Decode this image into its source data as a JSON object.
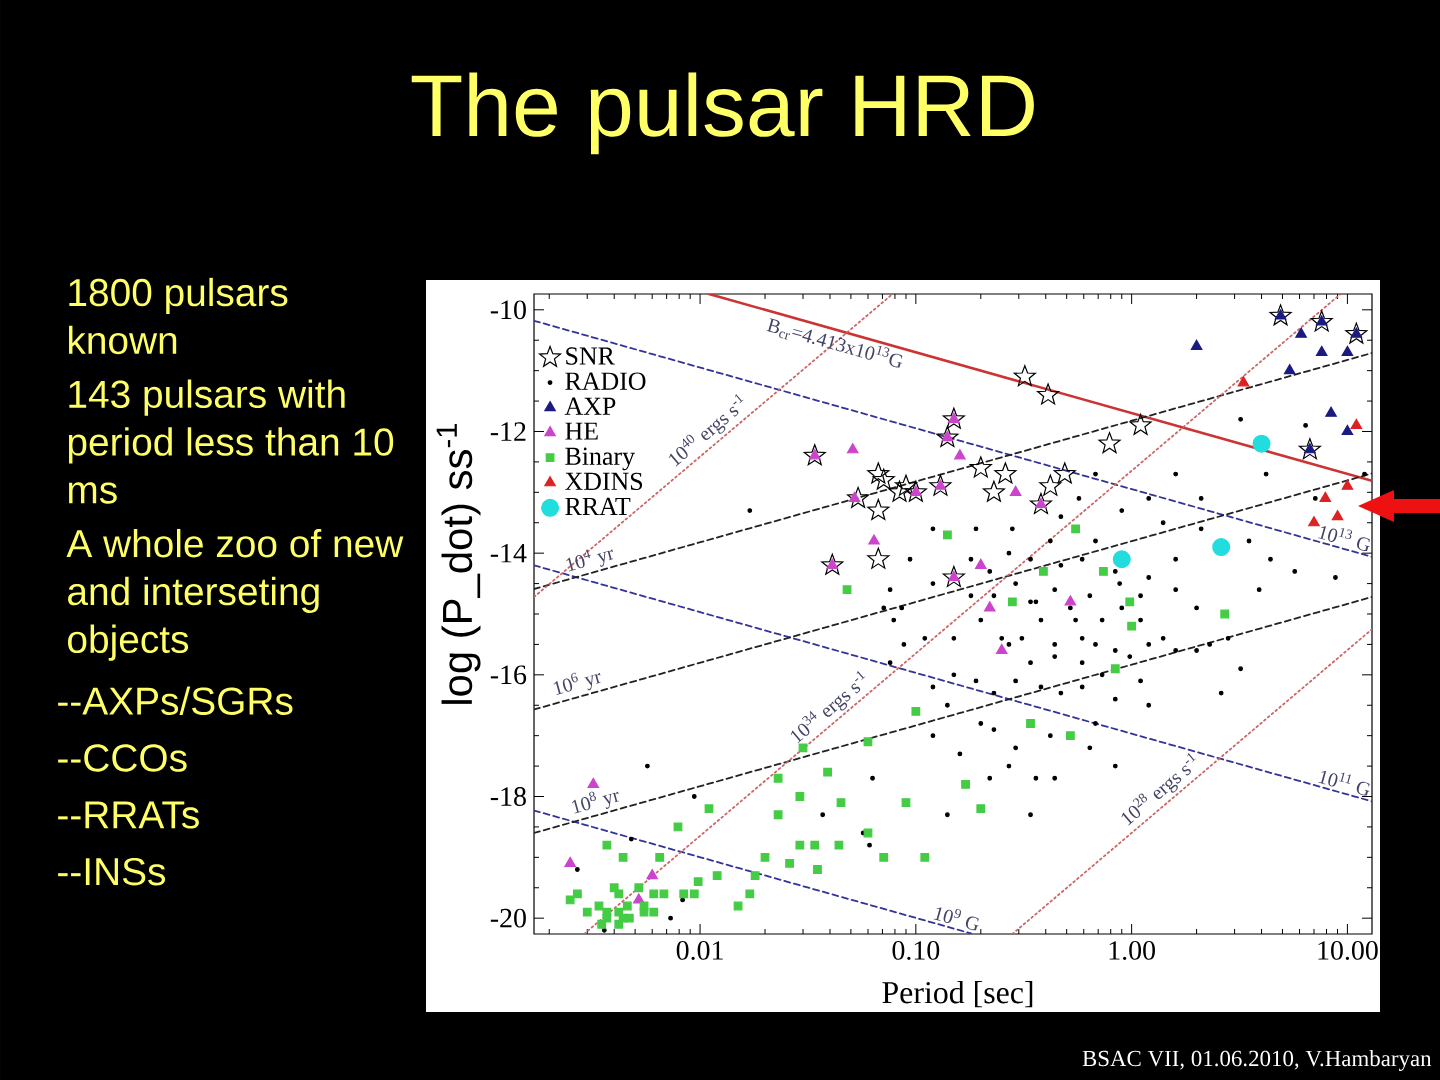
{
  "chart_data": {
    "type": "scatter",
    "title": "The pulsar HRD",
    "xlabel": "Period [sec]",
    "ylabel": "log (P_dot) ss$^{-1}$",
    "log": "x",
    "xlim": [
      0.0017,
      13
    ],
    "ylim": [
      -20.26,
      -9.74
    ],
    "xticks": [
      {
        "value": 0.01,
        "label": "0.01"
      },
      {
        "value": 0.1,
        "label": "0.10"
      },
      {
        "value": 1,
        "label": "1.00"
      },
      {
        "value": 10,
        "label": "10.00"
      }
    ],
    "yticks": [
      -20,
      -18,
      -16,
      -14,
      -12,
      -10
    ],
    "legend": "top left",
    "series": [
      {
        "name": "SNR",
        "color": "#000000",
        "marker": "star",
        "x": [
          0.034,
          0.067,
          0.071,
          0.084,
          0.054,
          0.067,
          0.041,
          0.067,
          4.9,
          7.6,
          11,
          0.32,
          0.41,
          1.1,
          0.15,
          0.14,
          0.79,
          6.7,
          0.09,
          0.1,
          0.13,
          0.2,
          0.26,
          0.23,
          0.49,
          0.42,
          0.38,
          0.15
        ],
        "values": [
          -12.4,
          -12.7,
          -12.8,
          -13.0,
          -13.1,
          -13.3,
          -14.2,
          -14.1,
          -10.1,
          -10.2,
          -10.4,
          -11.1,
          -11.4,
          -11.9,
          -11.8,
          -12.1,
          -12.2,
          -12.3,
          -12.9,
          -13.0,
          -12.9,
          -12.6,
          -12.7,
          -13.0,
          -12.7,
          -12.9,
          -13.2,
          -14.4
        ]
      },
      {
        "name": "RADIO",
        "color": "#000000",
        "marker": "circle",
        "x": [
          3.2,
          6.4,
          4.2,
          12,
          7.1,
          1.6,
          2.1,
          1.2,
          0.68,
          0.57,
          0.9,
          0.47,
          1.4,
          2.1,
          3.5,
          4.4,
          5.7,
          8.8,
          1.6,
          1.2,
          1.6,
          2.0,
          0.68,
          0.84,
          0.59,
          0.42,
          0.34,
          0.27,
          0.22,
          0.29,
          0.44,
          0.64,
          0.9,
          1.1,
          0.55,
          0.38,
          0.31,
          0.44,
          0.68,
          0.84,
          0.18,
          0.12,
          0.094,
          0.086,
          0.2,
          0.15,
          1.4,
          2.0,
          2.8,
          3.9,
          0.19,
          0.28,
          0.12,
          0.27,
          0.34,
          0.44,
          0.59,
          0.73,
          0.98,
          1.2,
          1.6,
          2.3,
          3.2,
          2.6,
          1.2,
          1.1,
          0.84,
          0.59,
          0.47,
          0.38,
          0.29,
          0.23,
          0.19,
          0.15,
          0.12,
          0.14,
          0.23,
          0.29,
          0.42,
          0.64,
          0.84,
          0.44,
          0.36,
          0.27,
          0.22,
          0.14,
          0.34,
          0.2,
          0.68,
          0.16,
          0.12,
          0.017,
          0.0057,
          0.0094,
          0.0048,
          0.0083,
          0.037,
          0.057,
          0.061,
          0.063,
          0.0027,
          0.0073,
          0.0036,
          0.071,
          0.076,
          0.079,
          0.088,
          0.076,
          0.23,
          0.36,
          0.52,
          0.73,
          0.47,
          0.88,
          0.25,
          0.34,
          0.59,
          1.1,
          0.18,
          0.11
        ],
        "values": [
          -11.8,
          -11.9,
          -12.7,
          -12.7,
          -13.1,
          -12.7,
          -13.1,
          -13.1,
          -12.7,
          -13.1,
          -13.3,
          -13.4,
          -13.5,
          -13.6,
          -13.8,
          -14.1,
          -14.3,
          -14.4,
          -14.1,
          -14.4,
          -14.6,
          -14.9,
          -13.8,
          -14.3,
          -14.1,
          -13.8,
          -14.1,
          -14.0,
          -14.3,
          -14.5,
          -14.6,
          -14.7,
          -14.9,
          -15.1,
          -15.1,
          -15.1,
          -15.4,
          -15.5,
          -15.5,
          -15.6,
          -14.7,
          -14.5,
          -14.1,
          -14.9,
          -15.1,
          -15.4,
          -15.4,
          -15.6,
          -15.4,
          -14.6,
          -13.6,
          -13.6,
          -13.6,
          -15.5,
          -15.8,
          -15.7,
          -15.8,
          -16.0,
          -15.7,
          -15.5,
          -15.6,
          -15.5,
          -15.9,
          -16.3,
          -16.5,
          -16.1,
          -16.4,
          -16.2,
          -16.3,
          -16.2,
          -16.1,
          -16.3,
          -16.1,
          -16.0,
          -16.2,
          -16.5,
          -16.9,
          -17.2,
          -17.0,
          -17.2,
          -17.5,
          -17.7,
          -17.7,
          -17.5,
          -17.7,
          -18.3,
          -18.3,
          -16.8,
          -16.8,
          -17.3,
          -17.0,
          -13.3,
          -17.5,
          -18.0,
          -18.7,
          -19.7,
          -18.3,
          -18.6,
          -18.8,
          -17.7,
          -19.2,
          -20.0,
          -20.2,
          -14.9,
          -14.6,
          -15.1,
          -15.5,
          -15.8,
          -14.7,
          -14.8,
          -14.9,
          -15.1,
          -14.2,
          -14.5,
          -15.4,
          -14.8,
          -15.4,
          -14.7,
          -14.1,
          -15.4
        ]
      },
      {
        "name": "AXP",
        "color": "#1a1a80",
        "marker": "triangle",
        "x": [
          2.0,
          6.1,
          7.6,
          10,
          5.4,
          8.4,
          10,
          6.7,
          7.6,
          4.9,
          11
        ],
        "values": [
          -10.6,
          -10.4,
          -10.7,
          -10.7,
          -11.0,
          -11.7,
          -12.0,
          -12.3,
          -10.2,
          -10.1,
          -10.4
        ]
      },
      {
        "name": "HE",
        "color": "#cc44cc",
        "marker": "triangle",
        "x": [
          0.034,
          0.051,
          0.052,
          0.064,
          0.15,
          0.14,
          0.16,
          0.1,
          0.13,
          0.29,
          0.38,
          0.15,
          0.2,
          0.22,
          0.25,
          0.52,
          0.0032,
          0.0025,
          0.006,
          0.0052,
          0.041
        ],
        "values": [
          -12.4,
          -12.3,
          -13.1,
          -13.8,
          -11.8,
          -12.1,
          -12.4,
          -13.0,
          -12.9,
          -13.0,
          -13.2,
          -14.4,
          -14.2,
          -14.9,
          -15.6,
          -14.8,
          -17.8,
          -19.1,
          -19.3,
          -19.7,
          -14.2
        ]
      },
      {
        "name": "Binary",
        "color": "#44cc44",
        "marker": "square",
        "x": [
          0.048,
          0.14,
          0.55,
          0.39,
          0.28,
          0.98,
          1.0,
          0.74,
          2.7,
          0.84,
          0.1,
          0.34,
          0.52,
          0.17,
          0.2,
          0.09,
          0.11,
          0.03,
          0.06,
          0.023,
          0.029,
          0.039,
          0.045,
          0.011,
          0.0079,
          0.023,
          0.0037,
          0.0044,
          0.0065,
          0.02,
          0.026,
          0.029,
          0.034,
          0.035,
          0.044,
          0.06,
          0.071,
          0.018,
          0.017,
          0.015,
          0.0098,
          0.012,
          0.0094,
          0.0084,
          0.0068,
          0.0061,
          0.0055,
          0.0055,
          0.0046,
          0.0042,
          0.0042,
          0.0037,
          0.0037,
          0.003,
          0.0035,
          0.0042,
          0.0044,
          0.0047,
          0.004,
          0.0027,
          0.0025,
          0.0034,
          0.0052,
          0.0061
        ],
        "values": [
          -14.6,
          -13.7,
          -13.6,
          -14.3,
          -14.8,
          -14.8,
          -15.2,
          -14.3,
          -15.0,
          -15.9,
          -16.6,
          -16.8,
          -17.0,
          -17.8,
          -18.2,
          -18.1,
          -19.0,
          -17.2,
          -17.1,
          -17.7,
          -18.0,
          -17.6,
          -18.1,
          -18.2,
          -18.5,
          -18.3,
          -18.8,
          -19.0,
          -19.0,
          -19.0,
          -19.1,
          -18.8,
          -18.8,
          -19.2,
          -18.8,
          -18.6,
          -19.0,
          -19.3,
          -19.6,
          -19.8,
          -19.4,
          -19.3,
          -19.6,
          -19.6,
          -19.6,
          -19.6,
          -19.9,
          -19.8,
          -19.8,
          -19.9,
          -19.6,
          -19.9,
          -20.0,
          -19.9,
          -20.1,
          -20.1,
          -20.0,
          -20.0,
          -19.5,
          -19.6,
          -19.7,
          -19.8,
          -19.5,
          -19.9
        ]
      },
      {
        "name": "XDINS",
        "color": "#dd2222",
        "marker": "triangle",
        "x": [
          10,
          7.9,
          9.0,
          7.0,
          3.3,
          11
        ],
        "values": [
          -12.9,
          -13.1,
          -13.4,
          -13.5,
          -11.2,
          -11.9
        ]
      },
      {
        "name": "RRAT",
        "color": "#22dddd",
        "marker": "circle",
        "x": [
          4.0,
          0.9,
          2.6
        ],
        "values": [
          -12.2,
          -14.1,
          -13.9
        ]
      },
      {
        "type": "line",
        "color": "#cc3333",
        "line_style": "solid",
        "x": [
          0.011,
          13
        ],
        "values": [
          -9.74,
          -12.81
        ]
      },
      {
        "type": "line",
        "color": "#333399",
        "line_style": "dashed",
        "x": [
          0.0017,
          13
        ],
        "values": [
          -10.18,
          -14.06
        ]
      },
      {
        "type": "line",
        "color": "#333399",
        "line_style": "dashed",
        "x": [
          0.0017,
          13
        ],
        "values": [
          -14.2,
          -18.08
        ]
      },
      {
        "type": "line",
        "color": "#333399",
        "line_style": "dashed",
        "x": [
          0.0017,
          0.18
        ],
        "values": [
          -18.23,
          -20.25
        ]
      },
      {
        "type": "line",
        "color": "#222222",
        "line_style": "dashed",
        "x": [
          0.0017,
          13
        ],
        "values": [
          -14.59,
          -10.71
        ]
      },
      {
        "type": "line",
        "color": "#222222",
        "line_style": "dashed",
        "x": [
          0.0017,
          13
        ],
        "values": [
          -16.57,
          -12.69
        ]
      },
      {
        "type": "line",
        "color": "#222222",
        "line_style": "dashed",
        "x": [
          0.0017,
          13
        ],
        "values": [
          -18.6,
          -14.72
        ]
      },
      {
        "type": "line",
        "color": "#cc6666",
        "line_style": "dotted",
        "x": [
          0.0017,
          0.078
        ],
        "values": [
          -14.72,
          -9.74
        ]
      },
      {
        "type": "line",
        "color": "#cc6666",
        "line_style": "dotted",
        "x": [
          0.0029,
          9.3
        ],
        "values": [
          -20.26,
          -9.74
        ]
      },
      {
        "type": "line",
        "color": "#cc6666",
        "line_style": "dotted",
        "x": [
          0.28,
          13
        ],
        "values": [
          -20.26,
          -15.25
        ]
      }
    ],
    "annotations": [
      "1800 pulsars known",
      "143 pulsars with period less than 10 ms",
      "A whole zoo of new and interseting objects",
      "--AXPs/SGRs",
      "--CCOs",
      "--RRATs",
      "--INSs",
      "BSAC VII, 01.06.2010, V.Hambaryan",
      {
        "text": "B$_{cr}$=4.413x10$^{13}$G",
        "x": 0.044,
        "y": -10.34
      },
      {
        "text": "10$^{40}$ ergs s$^{-1}$",
        "x": 0.012,
        "y": -12.17
      },
      {
        "text": "10$^{34}$ ergs s$^{-1}$",
        "x": 0.044,
        "y": -16.72
      },
      {
        "text": "10$^{28}$ ergs s$^{-1}$",
        "x": 1.5,
        "y": -18.07
      },
      {
        "text": "10$^{4}$ yr",
        "x": 0.0032,
        "y": -14.32
      },
      {
        "text": "10$^{6}$ yr",
        "x": 0.0028,
        "y": -16.35
      },
      {
        "text": "10$^{8}$ yr",
        "x": 0.0034,
        "y": -18.3
      },
      {
        "text": "10$^{13}$ G",
        "x": 9.4,
        "y": -13.92
      },
      {
        "text": "10$^{11}$ G",
        "x": 9.4,
        "y": -17.94
      },
      {
        "text": "10$^{9}$ G",
        "x": 0.15,
        "y": -20.17
      }
    ]
  }
}
